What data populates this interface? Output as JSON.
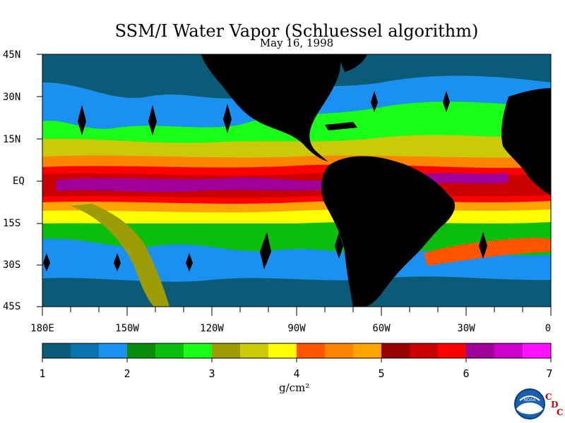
{
  "title": "SSM/I Water Vapor (Schluessel algorithm)",
  "date": "May 16, 1998",
  "lat_labels": [
    "45N",
    "30N",
    "15N",
    "EQ",
    "15S",
    "30S",
    "45S"
  ],
  "lon_labels": [
    "180E",
    "150W",
    "120W",
    "90W",
    "60W",
    "30W",
    "0"
  ],
  "colorbar": {
    "ticks": [
      "1",
      "2",
      "3",
      "4",
      "5",
      "6",
      "7"
    ],
    "unit": "g/cm²",
    "colors": [
      "#0b5a78",
      "#0a74ae",
      "#1a90f2",
      "#078c0b",
      "#09be0c",
      "#18ff18",
      "#9c9c07",
      "#caca08",
      "#ffff00",
      "#ff5500",
      "#ff8400",
      "#ffa400",
      "#980000",
      "#cb0000",
      "#ff0000",
      "#9e0098",
      "#cd00cd",
      "#ff11ff"
    ]
  },
  "logo": {
    "noaa_text": "NOAA",
    "cdc_letters": [
      "C",
      "D",
      "C"
    ]
  },
  "colors": {
    "land": "#000000",
    "background": "#ffffff"
  }
}
